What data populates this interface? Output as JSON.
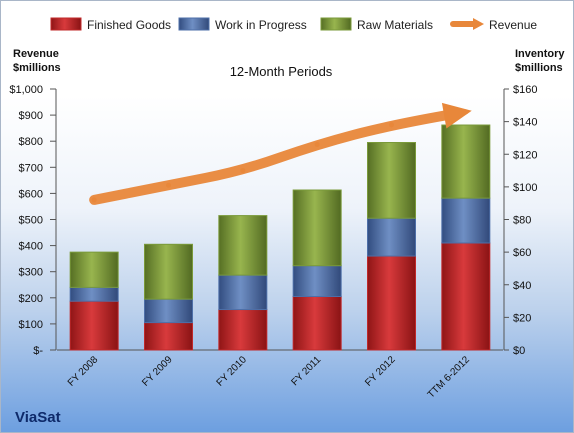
{
  "chart_data": {
    "type": "bar",
    "subtitle": "12-Month Periods",
    "company": "ViaSat",
    "categories": [
      "FY 2008",
      "FY 2009",
      "FY 2010",
      "FY 2011",
      "FY 2012",
      "TTM 6-2012"
    ],
    "series": [
      {
        "name": "Finished Goods",
        "axis": "left",
        "stacked": true,
        "color": "#c0282a",
        "values": [
          187,
          105,
          155,
          205,
          360,
          410
        ]
      },
      {
        "name": "Work in Progress",
        "axis": "left",
        "stacked": true,
        "color": "#4e6fa8",
        "values": [
          53,
          90,
          132,
          118,
          145,
          172
        ]
      },
      {
        "name": "Raw Materials",
        "axis": "left",
        "stacked": true,
        "color": "#7a9a3a",
        "values": [
          135,
          210,
          228,
          290,
          290,
          280
        ]
      },
      {
        "name": "Revenue",
        "axis": "right",
        "type": "line",
        "color": "#e8873a",
        "values": [
          92,
          101,
          110,
          126,
          138,
          146
        ]
      }
    ],
    "left_axis": {
      "label_line1": "Revenue",
      "label_line2": "$millions",
      "ylim": [
        0,
        1000
      ],
      "ticks": [
        {
          "value": 0,
          "label": "$-"
        },
        {
          "value": 100,
          "label": "$100"
        },
        {
          "value": 200,
          "label": "$200"
        },
        {
          "value": 300,
          "label": "$300"
        },
        {
          "value": 400,
          "label": "$400"
        },
        {
          "value": 500,
          "label": "$500"
        },
        {
          "value": 600,
          "label": "$600"
        },
        {
          "value": 700,
          "label": "$700"
        },
        {
          "value": 800,
          "label": "$800"
        },
        {
          "value": 900,
          "label": "$900"
        },
        {
          "value": 1000,
          "label": "$1,000"
        }
      ]
    },
    "right_axis": {
      "label_line1": "Inventory",
      "label_line2": "$millions",
      "ylim": [
        0,
        160
      ],
      "ticks": [
        {
          "value": 0,
          "label": "$0"
        },
        {
          "value": 20,
          "label": "$20"
        },
        {
          "value": 40,
          "label": "$40"
        },
        {
          "value": 60,
          "label": "$60"
        },
        {
          "value": 80,
          "label": "$80"
        },
        {
          "value": 100,
          "label": "$100"
        },
        {
          "value": 120,
          "label": "$120"
        },
        {
          "value": 140,
          "label": "$140"
        },
        {
          "value": 160,
          "label": "$160"
        }
      ]
    },
    "legend_position": "top",
    "grid": false
  }
}
